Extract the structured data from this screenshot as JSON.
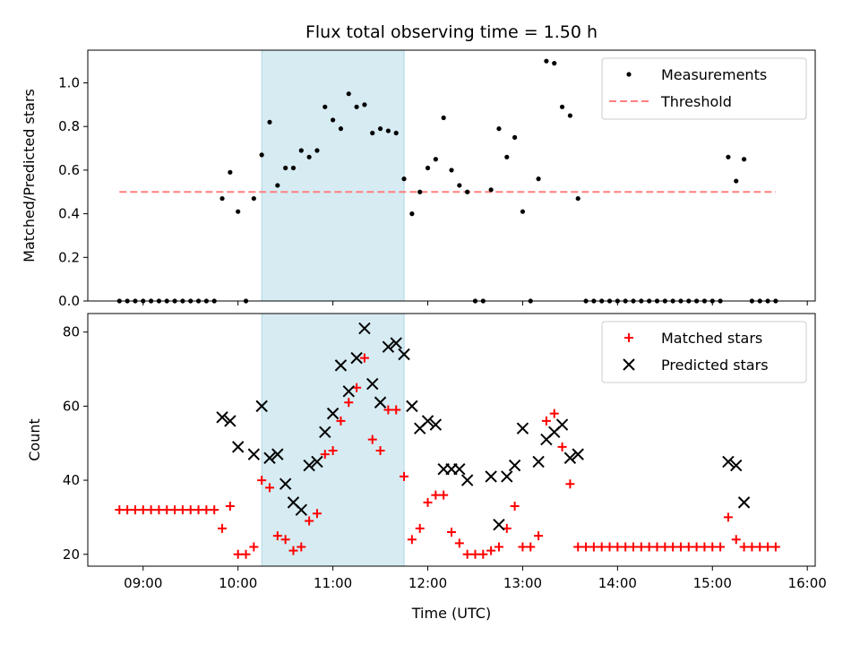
{
  "chart_data": [
    {
      "type": "scatter",
      "title": "Flux total observing time = 1.50 h",
      "xlabel": "",
      "ylabel": "Matched/Predicted stars",
      "xlim": [
        "08:25",
        "16:05"
      ],
      "ylim": [
        0,
        1.15
      ],
      "yticks": [
        "0.0",
        "0.2",
        "0.4",
        "0.6",
        "0.8",
        "1.0"
      ],
      "shaded_region": {
        "x": [
          "10:15",
          "11:45"
        ],
        "color": "#add8e6"
      },
      "legend": {
        "placement": "top-right",
        "entries": [
          "Measurements",
          "Threshold"
        ]
      },
      "threshold": {
        "name": "Threshold",
        "y": 0.5,
        "x": [
          "08:45",
          "15:40"
        ],
        "color": "#ff7f7f"
      },
      "series": [
        {
          "name": "Measurements",
          "color": "#000000",
          "points": [
            [
              "08:45",
              0
            ],
            [
              "08:50",
              0
            ],
            [
              "08:55",
              0
            ],
            [
              "09:00",
              0
            ],
            [
              "09:05",
              0
            ],
            [
              "09:10",
              0
            ],
            [
              "09:15",
              0
            ],
            [
              "09:20",
              0
            ],
            [
              "09:25",
              0
            ],
            [
              "09:30",
              0
            ],
            [
              "09:35",
              0
            ],
            [
              "09:40",
              0
            ],
            [
              "09:45",
              0
            ],
            [
              "09:50",
              0.47
            ],
            [
              "09:55",
              0.59
            ],
            [
              "10:00",
              0.41
            ],
            [
              "10:05",
              0
            ],
            [
              "10:10",
              0.47
            ],
            [
              "10:15",
              0.67
            ],
            [
              "10:20",
              0.82
            ],
            [
              "10:25",
              0.53
            ],
            [
              "10:30",
              0.61
            ],
            [
              "10:35",
              0.61
            ],
            [
              "10:40",
              0.69
            ],
            [
              "10:45",
              0.66
            ],
            [
              "10:50",
              0.69
            ],
            [
              "10:55",
              0.89
            ],
            [
              "11:00",
              0.83
            ],
            [
              "11:05",
              0.79
            ],
            [
              "11:10",
              0.95
            ],
            [
              "11:15",
              0.89
            ],
            [
              "11:20",
              0.9
            ],
            [
              "11:25",
              0.77
            ],
            [
              "11:30",
              0.79
            ],
            [
              "11:35",
              0.78
            ],
            [
              "11:40",
              0.77
            ],
            [
              "11:45",
              0.56
            ],
            [
              "11:50",
              0.4
            ],
            [
              "11:55",
              0.5
            ],
            [
              "12:00",
              0.61
            ],
            [
              "12:05",
              0.65
            ],
            [
              "12:10",
              0.84
            ],
            [
              "12:15",
              0.6
            ],
            [
              "12:20",
              0.53
            ],
            [
              "12:25",
              0.5
            ],
            [
              "12:30",
              0
            ],
            [
              "12:35",
              0
            ],
            [
              "12:40",
              0.51
            ],
            [
              "12:45",
              0.79
            ],
            [
              "12:50",
              0.66
            ],
            [
              "12:55",
              0.75
            ],
            [
              "13:00",
              0.41
            ],
            [
              "13:05",
              0
            ],
            [
              "13:10",
              0.56
            ],
            [
              "13:15",
              1.1
            ],
            [
              "13:20",
              1.09
            ],
            [
              "13:25",
              0.89
            ],
            [
              "13:30",
              0.85
            ],
            [
              "13:35",
              0.47
            ],
            [
              "13:40",
              0
            ],
            [
              "13:45",
              0
            ],
            [
              "13:50",
              0
            ],
            [
              "13:55",
              0
            ],
            [
              "14:00",
              0
            ],
            [
              "14:05",
              0
            ],
            [
              "14:10",
              0
            ],
            [
              "14:15",
              0
            ],
            [
              "14:20",
              0
            ],
            [
              "14:25",
              0
            ],
            [
              "14:30",
              0
            ],
            [
              "14:35",
              0
            ],
            [
              "14:40",
              0
            ],
            [
              "14:45",
              0
            ],
            [
              "14:50",
              0
            ],
            [
              "14:55",
              0
            ],
            [
              "15:00",
              0
            ],
            [
              "15:05",
              0
            ],
            [
              "15:10",
              0.66
            ],
            [
              "15:15",
              0.55
            ],
            [
              "15:20",
              0.65
            ],
            [
              "15:25",
              0
            ],
            [
              "15:30",
              0
            ],
            [
              "15:35",
              0
            ],
            [
              "15:40",
              0
            ]
          ]
        }
      ]
    },
    {
      "type": "scatter",
      "title": "",
      "xlabel": "Time (UTC)",
      "ylabel": "Count",
      "xlim": [
        "08:25",
        "16:05"
      ],
      "xticks": [
        "09:00",
        "10:00",
        "11:00",
        "12:00",
        "13:00",
        "14:00",
        "15:00",
        "16:00"
      ],
      "ylim": [
        16.8,
        85
      ],
      "yticks": [
        "20",
        "40",
        "60",
        "80"
      ],
      "shaded_region": {
        "x": [
          "10:15",
          "11:45"
        ],
        "color": "#add8e6"
      },
      "legend": {
        "placement": "top-right",
        "entries": [
          "Matched stars",
          "Predicted stars"
        ]
      },
      "series": [
        {
          "name": "Matched stars",
          "marker": "plus",
          "color": "#ff0000",
          "points": [
            [
              "08:45",
              32
            ],
            [
              "08:50",
              32
            ],
            [
              "08:55",
              32
            ],
            [
              "09:00",
              32
            ],
            [
              "09:05",
              32
            ],
            [
              "09:10",
              32
            ],
            [
              "09:15",
              32
            ],
            [
              "09:20",
              32
            ],
            [
              "09:25",
              32
            ],
            [
              "09:30",
              32
            ],
            [
              "09:35",
              32
            ],
            [
              "09:40",
              32
            ],
            [
              "09:45",
              32
            ],
            [
              "09:50",
              27
            ],
            [
              "09:55",
              33
            ],
            [
              "10:00",
              20
            ],
            [
              "10:05",
              20
            ],
            [
              "10:10",
              22
            ],
            [
              "10:15",
              40
            ],
            [
              "10:20",
              38
            ],
            [
              "10:25",
              25
            ],
            [
              "10:30",
              24
            ],
            [
              "10:35",
              21
            ],
            [
              "10:40",
              22
            ],
            [
              "10:45",
              29
            ],
            [
              "10:50",
              31
            ],
            [
              "10:55",
              47
            ],
            [
              "11:00",
              48
            ],
            [
              "11:05",
              56
            ],
            [
              "11:10",
              61
            ],
            [
              "11:15",
              65
            ],
            [
              "11:20",
              73
            ],
            [
              "11:25",
              51
            ],
            [
              "11:30",
              48
            ],
            [
              "11:35",
              59
            ],
            [
              "11:40",
              59
            ],
            [
              "11:45",
              41
            ],
            [
              "11:50",
              24
            ],
            [
              "11:55",
              27
            ],
            [
              "12:00",
              34
            ],
            [
              "12:05",
              36
            ],
            [
              "12:10",
              36
            ],
            [
              "12:15",
              26
            ],
            [
              "12:20",
              23
            ],
            [
              "12:25",
              20
            ],
            [
              "12:30",
              20
            ],
            [
              "12:35",
              20
            ],
            [
              "12:40",
              21
            ],
            [
              "12:45",
              22
            ],
            [
              "12:50",
              27
            ],
            [
              "12:55",
              33
            ],
            [
              "13:00",
              22
            ],
            [
              "13:05",
              22
            ],
            [
              "13:10",
              25
            ],
            [
              "13:15",
              56
            ],
            [
              "13:20",
              58
            ],
            [
              "13:25",
              49
            ],
            [
              "13:30",
              39
            ],
            [
              "13:35",
              22
            ],
            [
              "13:40",
              22
            ],
            [
              "13:45",
              22
            ],
            [
              "13:50",
              22
            ],
            [
              "13:55",
              22
            ],
            [
              "14:00",
              22
            ],
            [
              "14:05",
              22
            ],
            [
              "14:10",
              22
            ],
            [
              "14:15",
              22
            ],
            [
              "14:20",
              22
            ],
            [
              "14:25",
              22
            ],
            [
              "14:30",
              22
            ],
            [
              "14:35",
              22
            ],
            [
              "14:40",
              22
            ],
            [
              "14:45",
              22
            ],
            [
              "14:50",
              22
            ],
            [
              "14:55",
              22
            ],
            [
              "15:00",
              22
            ],
            [
              "15:05",
              22
            ],
            [
              "15:10",
              30
            ],
            [
              "15:15",
              24
            ],
            [
              "15:20",
              22
            ],
            [
              "15:25",
              22
            ],
            [
              "15:30",
              22
            ],
            [
              "15:35",
              22
            ],
            [
              "15:40",
              22
            ]
          ]
        },
        {
          "name": "Predicted stars",
          "marker": "x",
          "color": "#000000",
          "points": [
            [
              "09:50",
              57
            ],
            [
              "09:55",
              56
            ],
            [
              "10:00",
              49
            ],
            [
              "10:10",
              47
            ],
            [
              "10:15",
              60
            ],
            [
              "10:20",
              46
            ],
            [
              "10:25",
              47
            ],
            [
              "10:30",
              39
            ],
            [
              "10:35",
              34
            ],
            [
              "10:40",
              32
            ],
            [
              "10:45",
              44
            ],
            [
              "10:50",
              45
            ],
            [
              "10:55",
              53
            ],
            [
              "11:00",
              58
            ],
            [
              "11:05",
              71
            ],
            [
              "11:10",
              64
            ],
            [
              "11:15",
              73
            ],
            [
              "11:20",
              81
            ],
            [
              "11:25",
              66
            ],
            [
              "11:30",
              61
            ],
            [
              "11:35",
              76
            ],
            [
              "11:40",
              77
            ],
            [
              "11:45",
              74
            ],
            [
              "11:50",
              60
            ],
            [
              "11:55",
              54
            ],
            [
              "12:00",
              56
            ],
            [
              "12:05",
              55
            ],
            [
              "12:10",
              43
            ],
            [
              "12:15",
              43
            ],
            [
              "12:20",
              43
            ],
            [
              "12:25",
              40
            ],
            [
              "12:40",
              41
            ],
            [
              "12:45",
              28
            ],
            [
              "12:50",
              41
            ],
            [
              "12:55",
              44
            ],
            [
              "13:00",
              54
            ],
            [
              "13:10",
              45
            ],
            [
              "13:15",
              51
            ],
            [
              "13:20",
              53
            ],
            [
              "13:25",
              55
            ],
            [
              "13:30",
              46
            ],
            [
              "13:35",
              47
            ],
            [
              "15:10",
              45
            ],
            [
              "15:15",
              44
            ],
            [
              "15:20",
              34
            ]
          ]
        }
      ]
    }
  ]
}
